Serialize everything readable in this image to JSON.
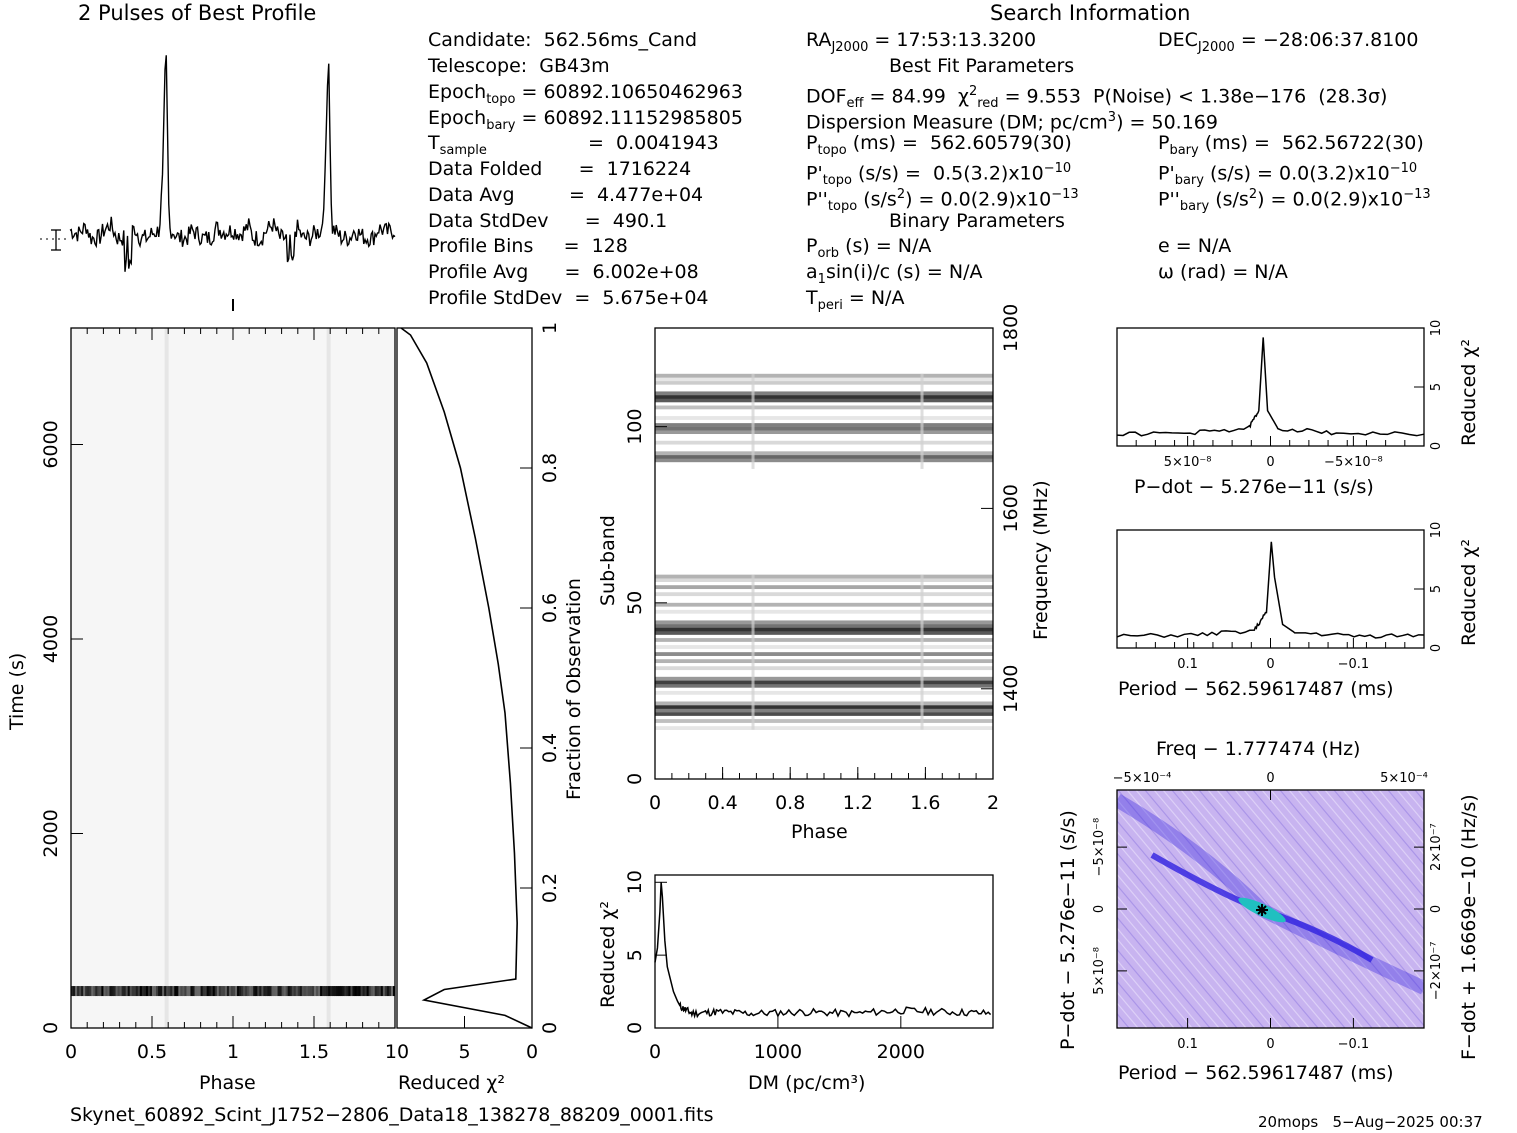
{
  "profile": {
    "title": "2 Pulses of Best Profile"
  },
  "search_info": {
    "title": "Search Information",
    "candidate": "Candidate:  562.56ms_Cand",
    "telescope": "Telescope:  GB43m",
    "epoch_topo": "Epoch",
    "epoch_topo_sub": "topo",
    "epoch_topo_val": " = 60892.10650462963",
    "epoch_bary": "Epoch",
    "epoch_bary_sub": "bary",
    "epoch_bary_val": " = 60892.11152985805",
    "tsample": "T",
    "tsample_sub": "sample",
    "tsample_val": "=  0.0041943",
    "data_folded": "Data Folded      =  1716224",
    "data_avg": "Data Avg         =  4.477e+04",
    "data_stddev": "Data StdDev      =  490.1",
    "profile_bins": "Profile Bins     =  128",
    "profile_avg": "Profile Avg      =  6.002e+08",
    "profile_stddev": "Profile StdDev  =  5.675e+04",
    "ra": "RA",
    "ra_sub": "J2000",
    "ra_val": " = 17:53:13.3200",
    "dec": "DEC",
    "dec_sub": "J2000",
    "dec_val": " = −28:06:37.8100",
    "best_fit": "Best Fit Parameters",
    "dof": "DOF",
    "dof_sub": "eff",
    "dof_val": " = 84.99  χ",
    "chi_sup": "2",
    "chi_sub": "red",
    "chi_val": " = 9.553  P(Noise) < 1.38e−176  (28.3σ)",
    "dm": "Dispersion Measure (DM; pc/cm",
    "dm_sup": "3",
    "dm_val": ") = 50.169",
    "ptopo": "P",
    "ptopo_sub": "topo",
    "ptopo_val": " (ms) =  562.60579(30)",
    "pbary": "P",
    "pbary_sub": "bary",
    "pbary_val": " (ms) =  562.56722(30)",
    "pdtopo": "P'",
    "pdtopo_sub": "topo",
    "pdtopo_val": " (s/s) =  0.5(3.2)x10",
    "pdtopo_exp": "−10",
    "pdbary": "P'",
    "pdbary_sub": "bary",
    "pdbary_val": " (s/s) = 0.0(3.2)x10",
    "pdbary_exp": "−10",
    "pddtopo": "P''",
    "pddtopo_sub": "topo",
    "pddtopo_val": " (s/s",
    "pddtopo_sup": "2",
    "pddtopo_val2": ") = 0.0(2.9)x10",
    "pddtopo_exp": "−13",
    "pddbary": "P''",
    "pddbary_sub": "bary",
    "pddbary_val": " (s/s",
    "pddbary_sup": "2",
    "pddbary_val2": ") = 0.0(2.9)x10",
    "pddbary_exp": "−13",
    "binary": "Binary Parameters",
    "porb": "P",
    "porb_sub": "orb",
    "porb_val": " (s) = N/A",
    "a1": "a",
    "a1_sub": "1",
    "a1_val": "sin(i)/c (s) = N/A",
    "tperi": "T",
    "tperi_sub": "peri",
    "tperi_val": " = N/A",
    "e": "e = N/A",
    "omega": "ω (rad) = N/A"
  },
  "footer": {
    "filename": "Skynet_60892_Scint_J1752−2806_Data18_138278_88209_0001.fits",
    "stamp": "20mops   5−Aug−2025 00:37"
  },
  "chart_data": [
    {
      "id": "pulse-profile",
      "type": "line",
      "title": "2 Pulses of Best Profile",
      "x": [
        0,
        0.05,
        0.1,
        0.15,
        0.2,
        0.25,
        0.3,
        0.35,
        0.4,
        0.45,
        0.5,
        0.55,
        0.57,
        0.59,
        0.61,
        0.65,
        0.7,
        0.75,
        0.8,
        0.85,
        0.9,
        0.95,
        1.0,
        1.05,
        1.1,
        1.15,
        1.2,
        1.25,
        1.3,
        1.35,
        1.4,
        1.45,
        1.5,
        1.55,
        1.57,
        1.59,
        1.61,
        1.65,
        1.7,
        1.75,
        1.8,
        1.85,
        1.9,
        1.95,
        2.0
      ],
      "values": [
        0.04,
        0.02,
        0.06,
        -0.05,
        0.03,
        0.07,
        -0.02,
        0.01,
        0.05,
        -0.03,
        0.02,
        0.04,
        0.3,
        1.0,
        0.05,
        0.02,
        -0.03,
        0.04,
        0.01,
        -0.02,
        0.05,
        0.03,
        0.04,
        0.02,
        0.06,
        -0.05,
        0.03,
        0.07,
        -0.02,
        0.01,
        0.05,
        -0.03,
        0.02,
        0.04,
        0.3,
        1.0,
        0.05,
        0.02,
        -0.03,
        0.04,
        0.01,
        -0.02,
        0.05,
        0.03,
        0.04
      ],
      "xlim": [
        0,
        2
      ]
    },
    {
      "id": "time-phase",
      "type": "heatmap",
      "xlabel": "Phase",
      "ylabel": "Time (s)",
      "xlim": [
        0,
        2
      ],
      "ylim": [
        0,
        7198
      ],
      "xticks": [
        "0",
        "0.5",
        "1",
        "1.5"
      ],
      "yticks": [
        "0",
        "2000",
        "4000",
        "6000"
      ],
      "bright_band_time": 380
    },
    {
      "id": "fraction-chi2",
      "type": "line",
      "xlabel": "Reduced χ²",
      "ylabel": "Fraction of Observation",
      "xlim": [
        10,
        0
      ],
      "ylim": [
        0,
        1
      ],
      "xticks": [
        "10",
        "5",
        "0"
      ],
      "yticks": [
        "0",
        "0.2",
        "0.4",
        "0.6",
        "0.8",
        "1"
      ],
      "x": [
        0,
        2.0,
        8.0,
        6.5,
        1.2,
        1.1,
        1.3,
        1.6,
        2.0,
        2.5,
        3.2,
        4.2,
        5.3,
        6.5,
        7.8,
        9.0,
        9.7
      ],
      "y": [
        0,
        0.018,
        0.04,
        0.055,
        0.07,
        0.15,
        0.25,
        0.35,
        0.45,
        0.52,
        0.6,
        0.7,
        0.8,
        0.88,
        0.95,
        0.99,
        1.0
      ]
    },
    {
      "id": "subband-phase",
      "type": "heatmap",
      "xlabel": "Phase",
      "ylabel": "Sub-band",
      "y2label": "Frequency (MHz)",
      "xlim": [
        0,
        2
      ],
      "ylim": [
        0,
        128
      ],
      "y2lim": [
        1300,
        1800
      ],
      "xticks": [
        "0",
        "0.4",
        "0.8",
        "1.2",
        "1.6",
        "2"
      ],
      "yticks": [
        "0",
        "50",
        "100"
      ],
      "y2ticks": [
        "1400",
        "1600",
        "1800"
      ]
    },
    {
      "id": "dm-chi2",
      "type": "line",
      "xlabel": "DM (pc/cm³)",
      "ylabel": "Reduced χ²",
      "xlim": [
        0,
        2750
      ],
      "ylim": [
        0,
        10.5
      ],
      "xticks": [
        "0",
        "1000",
        "2000"
      ],
      "yticks": [
        "0",
        "5",
        "10"
      ],
      "x": [
        0,
        20,
        40,
        50,
        60,
        80,
        100,
        150,
        200,
        300,
        500,
        800,
        1200,
        1600,
        2000,
        2400,
        2750
      ],
      "y": [
        4.5,
        5.5,
        8.0,
        10.0,
        9.0,
        6.0,
        4.2,
        2.5,
        1.5,
        1.0,
        1.1,
        1.0,
        1.1,
        1.0,
        1.2,
        1.1,
        1.0
      ]
    },
    {
      "id": "pdot-chi2",
      "type": "line",
      "xlabel": "P−dot − 5.276e−11 (s/s)",
      "ylabel": "Reduced χ²",
      "xticks": [
        "5×10⁻⁸",
        "0",
        "−5×10⁻⁸"
      ],
      "yticks": [
        "0",
        "5",
        "10"
      ],
      "xlim": [
        1e-07,
        -1.1e-07
      ],
      "ylim": [
        0,
        10
      ],
      "x": [
        1e-07,
        5e-08,
        1e-08,
        3e-09,
        0,
        -3e-09,
        -1e-08,
        -5e-08,
        -1.1e-07
      ],
      "y": [
        1.0,
        1.1,
        1.5,
        3.0,
        9.2,
        3.0,
        1.5,
        1.1,
        1.0
      ]
    },
    {
      "id": "period-chi2",
      "type": "line",
      "xlabel": "Period − 562.59617487 (ms)",
      "ylabel": "Reduced χ²",
      "xticks": [
        "0.1",
        "0",
        "−0.1"
      ],
      "yticks": [
        "0",
        "5",
        "10"
      ],
      "xlim": [
        0.2,
        -0.18
      ],
      "ylim": [
        0,
        10
      ],
      "x": [
        0.2,
        0.1,
        0.03,
        0.015,
        0.009,
        0.005,
        -0.005,
        -0.02,
        -0.1,
        -0.18
      ],
      "y": [
        1.0,
        1.1,
        1.5,
        3.0,
        9.0,
        6.0,
        2.0,
        1.3,
        1.0,
        1.1
      ]
    },
    {
      "id": "period-pdot",
      "type": "heatmap",
      "title": "Freq − 1.777474 (Hz)",
      "xlabel": "Period − 562.59617487 (ms)",
      "ylabel": "P−dot − 5.276e−11 (s/s)",
      "y2label": "F−dot + 1.6669e−10 (Hz/s)",
      "xticks": [
        "0.1",
        "0",
        "−0.1"
      ],
      "x2ticks": [
        "−5×10⁻⁴",
        "0",
        "5×10⁻⁴"
      ],
      "yticks": [
        "−5×10⁻⁸",
        "0",
        "5×10⁻⁸"
      ],
      "y2ticks": [
        "2×10⁻⁷",
        "0",
        "−2×10⁻⁷"
      ],
      "colors": {
        "low": "#c8b4f0",
        "mid": "#3020e0",
        "high": "#20c0c0"
      }
    }
  ]
}
